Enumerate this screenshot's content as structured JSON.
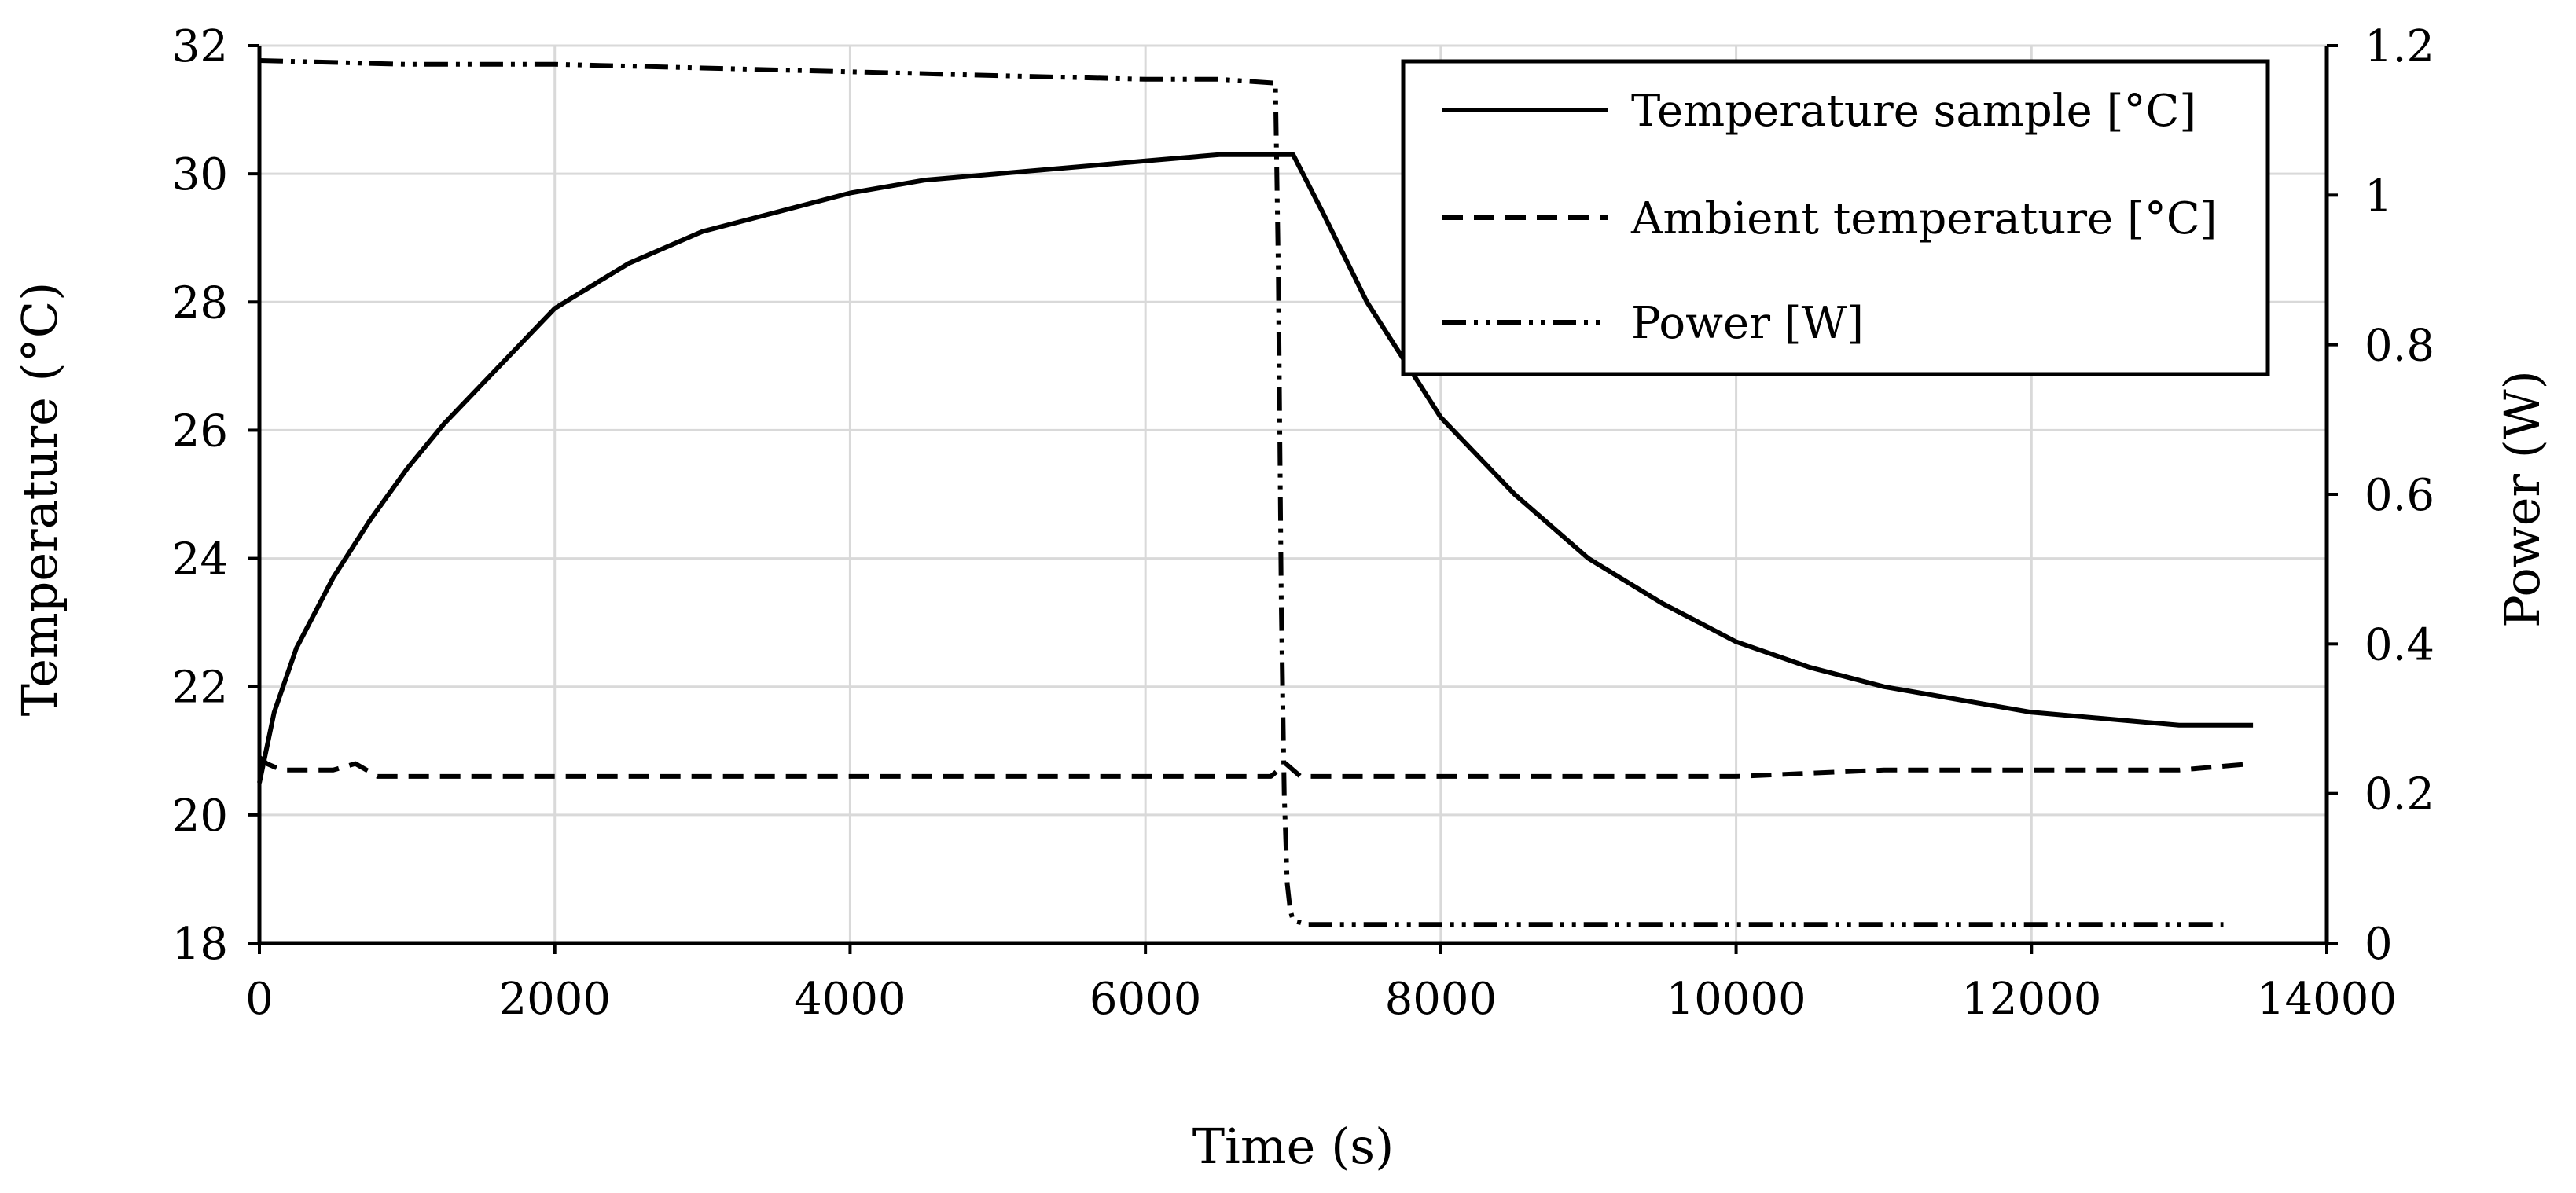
{
  "chart_data": {
    "type": "line",
    "title": "",
    "xlabel": "Time (s)",
    "ylabel": "Temperature (°C)",
    "y2label": "Power (W)",
    "xlim": [
      0,
      14000
    ],
    "ylim": [
      18,
      32
    ],
    "y2lim": [
      0,
      1.2
    ],
    "grid": true,
    "legend_position": "top-right",
    "x_ticks": [
      0,
      2000,
      4000,
      6000,
      8000,
      10000,
      12000,
      14000
    ],
    "x_tick_labels": [
      "0",
      "2000",
      "4000",
      "6000",
      "8000",
      "10000",
      "12000",
      "14000"
    ],
    "y_ticks": [
      18,
      20,
      22,
      24,
      26,
      28,
      30,
      32
    ],
    "y_tick_labels": [
      "18",
      "20",
      "22",
      "24",
      "26",
      "28",
      "30",
      "32"
    ],
    "y2_ticks": [
      0,
      0.2,
      0.4,
      0.6,
      0.8,
      1.0,
      1.2
    ],
    "y2_tick_labels": [
      "0",
      "0.2",
      "0.4",
      "0.6",
      "0.8",
      "1",
      "1.2"
    ],
    "series": [
      {
        "name": "Temperature sample [°C]",
        "axis": "left",
        "style": "solid",
        "x": [
          0,
          100,
          250,
          500,
          750,
          1000,
          1250,
          1500,
          2000,
          2500,
          3000,
          3500,
          4000,
          4500,
          5000,
          5500,
          6000,
          6500,
          6900,
          7000,
          7200,
          7500,
          8000,
          8500,
          9000,
          9500,
          10000,
          10500,
          11000,
          11500,
          12000,
          12500,
          13000,
          13500
        ],
        "y": [
          20.5,
          21.6,
          22.6,
          23.7,
          24.6,
          25.4,
          26.1,
          26.7,
          27.9,
          28.6,
          29.1,
          29.4,
          29.7,
          29.9,
          30.0,
          30.1,
          30.2,
          30.3,
          30.3,
          30.3,
          29.4,
          28.0,
          26.2,
          25.0,
          24.0,
          23.3,
          22.7,
          22.3,
          22.0,
          21.8,
          21.6,
          21.5,
          21.4,
          21.4
        ]
      },
      {
        "name": "Ambient temperature [°C]",
        "axis": "left",
        "style": "dashed",
        "x": [
          0,
          50,
          150,
          300,
          500,
          650,
          800,
          1000,
          2000,
          3000,
          4000,
          5000,
          6000,
          6850,
          6950,
          7050,
          8000,
          9000,
          10000,
          11000,
          12000,
          13000,
          13500
        ],
        "y": [
          20.9,
          20.8,
          20.7,
          20.7,
          20.7,
          20.8,
          20.6,
          20.6,
          20.6,
          20.6,
          20.6,
          20.6,
          20.6,
          20.6,
          20.8,
          20.6,
          20.6,
          20.6,
          20.6,
          20.7,
          20.7,
          20.7,
          20.8
        ]
      },
      {
        "name": "Power [W]",
        "axis": "right",
        "style": "dash-dot-dot",
        "x": [
          0,
          1000,
          2000,
          3000,
          4000,
          5000,
          6000,
          6500,
          6870,
          6880,
          6900,
          6920,
          6940,
          6960,
          6980,
          7000,
          7100,
          8000,
          9000,
          10000,
          11000,
          12000,
          13000,
          13300
        ],
        "y": [
          1.18,
          1.175,
          1.175,
          1.17,
          1.165,
          1.16,
          1.155,
          1.155,
          1.15,
          1.15,
          0.9,
          0.45,
          0.2,
          0.08,
          0.045,
          0.03,
          0.025,
          0.025,
          0.025,
          0.025,
          0.025,
          0.025,
          0.025,
          0.025
        ]
      }
    ]
  }
}
